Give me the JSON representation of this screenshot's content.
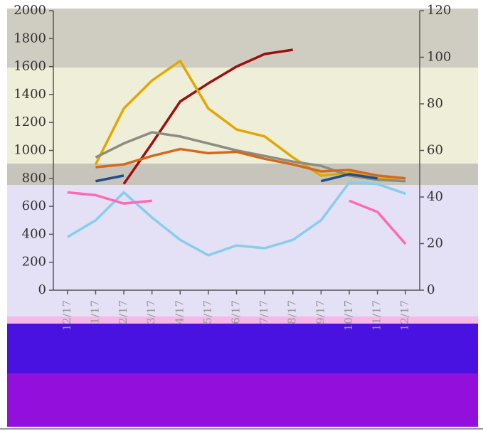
{
  "chart_data": {
    "type": "line",
    "categories": [
      "12/17",
      "1/17",
      "2/17",
      "3/17",
      "4/17",
      "5/17",
      "6/17",
      "7/17",
      "8/17",
      "9/17",
      "10/17",
      "11/17",
      "12/17"
    ],
    "series": [
      {
        "color": "#9b0f0f",
        "values": [
          null,
          null,
          760,
          1050,
          1350,
          1480,
          1600,
          1690,
          1720,
          null,
          null,
          null,
          null
        ]
      },
      {
        "color": "#e0a800",
        "values": [
          null,
          900,
          1300,
          1500,
          1640,
          1300,
          1150,
          1100,
          950,
          820,
          840,
          800,
          780
        ]
      },
      {
        "color": "#8c8c80",
        "values": [
          null,
          950,
          1050,
          1130,
          1100,
          1050,
          1000,
          960,
          920,
          890,
          820,
          790,
          780
        ]
      },
      {
        "color": "#d2691e",
        "values": [
          null,
          880,
          900,
          960,
          1010,
          980,
          990,
          940,
          900,
          850,
          860,
          820,
          800
        ]
      },
      {
        "color": "#1f4e8c",
        "values": [
          null,
          780,
          820,
          null,
          null,
          null,
          null,
          null,
          null,
          780,
          830,
          800,
          null
        ]
      },
      {
        "color": "#87ceeb",
        "values": [
          380,
          500,
          700,
          520,
          360,
          250,
          320,
          300,
          360,
          500,
          770,
          760,
          690
        ]
      },
      {
        "color": "#ff69b4",
        "values": [
          700,
          680,
          620,
          640,
          null,
          null,
          null,
          null,
          null,
          null,
          640,
          560,
          330
        ]
      }
    ],
    "ylim": [
      0,
      2000
    ],
    "yticks": [
      0,
      200,
      400,
      600,
      800,
      1000,
      1200,
      1400,
      1600,
      1800,
      2000
    ],
    "y2lim": [
      0,
      120
    ],
    "y2ticks": [
      0,
      20,
      40,
      60,
      80,
      100,
      120
    ]
  }
}
